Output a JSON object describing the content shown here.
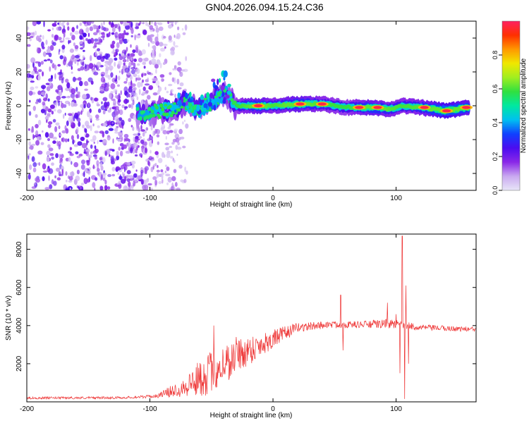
{
  "title": "GN04.2026.094.15.24.C36",
  "chart_data": [
    {
      "type": "heatmap",
      "name": "spectrogram",
      "xlabel": "Height of straight line (km)",
      "ylabel": "Frequency (Hz)",
      "xlim": [
        -200,
        165
      ],
      "ylim": [
        -50,
        50
      ],
      "xticks": [
        -200,
        -100,
        0,
        100
      ],
      "yticks": [
        -40,
        -20,
        0,
        20,
        40
      ],
      "noise_region_x": [
        -200,
        -85
      ],
      "ridge": [
        {
          "x": -110,
          "f": -4,
          "a": 0.35
        },
        {
          "x": -100,
          "f": -4,
          "a": 0.4
        },
        {
          "x": -90,
          "f": -3,
          "a": 0.5
        },
        {
          "x": -80,
          "f": -2,
          "a": 0.45
        },
        {
          "x": -72,
          "f": 2,
          "a": 0.5
        },
        {
          "x": -60,
          "f": -2,
          "a": 0.4
        },
        {
          "x": -50,
          "f": 2,
          "a": 0.45
        },
        {
          "x": -40,
          "f": 8,
          "a": 0.4
        },
        {
          "x": -30,
          "f": 0,
          "a": 0.5
        },
        {
          "x": -20,
          "f": 0,
          "a": 0.6
        },
        {
          "x": -10,
          "f": 0,
          "a": 0.7
        },
        {
          "x": 0,
          "f": 0,
          "a": 0.55
        },
        {
          "x": 20,
          "f": 1,
          "a": 0.7
        },
        {
          "x": 40,
          "f": 1,
          "a": 0.55
        },
        {
          "x": 60,
          "f": -1,
          "a": 0.5
        },
        {
          "x": 80,
          "f": -1,
          "a": 0.7
        },
        {
          "x": 95,
          "f": -2,
          "a": 0.6
        },
        {
          "x": 105,
          "f": 0,
          "a": 0.55
        },
        {
          "x": 120,
          "f": -1,
          "a": 0.6
        },
        {
          "x": 140,
          "f": -3,
          "a": 0.85
        },
        {
          "x": 160,
          "f": -1,
          "a": 0.7
        }
      ],
      "hotspots": [
        {
          "x": -12,
          "f": 0
        },
        {
          "x": 22,
          "f": 1
        },
        {
          "x": 40,
          "f": 1
        },
        {
          "x": 70,
          "f": -1
        },
        {
          "x": 85,
          "f": -1
        },
        {
          "x": 123,
          "f": -1
        },
        {
          "x": 141,
          "f": -3
        },
        {
          "x": 157,
          "f": -1
        }
      ],
      "colorbar": {
        "label": "Normalized spectral amplitude",
        "range": [
          0.0,
          1.0
        ],
        "ticks": [
          {
            "value": 0.0,
            "label": "0.0"
          },
          {
            "value": 0.2,
            "label": "0.2"
          },
          {
            "value": 0.4,
            "label": "0.4"
          },
          {
            "value": 0.6,
            "label": "0.6"
          },
          {
            "value": 0.8,
            "label": "0.8"
          }
        ],
        "colors": [
          "#e8e6f8",
          "#c9a9f0",
          "#8a28e8",
          "#4b0cf0",
          "#1040ff",
          "#00c0f0",
          "#00e8a0",
          "#30e040",
          "#a0ee20",
          "#f0e800",
          "#ff9800",
          "#ff3000",
          "#ff2060"
        ]
      }
    },
    {
      "type": "line",
      "name": "snr",
      "xlabel": "Height of straight line (km)",
      "ylabel": "SNR (10 * v/v)",
      "xlim": [
        -200,
        165
      ],
      "ylim": [
        0,
        8800
      ],
      "xticks": [
        -200,
        -100,
        0,
        100
      ],
      "yticks": [
        2000,
        4000,
        6000,
        8000
      ],
      "color": "#ee3333",
      "envelope": [
        {
          "x": -200,
          "base": 200,
          "spread": 60
        },
        {
          "x": -120,
          "base": 220,
          "spread": 60
        },
        {
          "x": -95,
          "base": 300,
          "spread": 90
        },
        {
          "x": -75,
          "base": 700,
          "spread": 450
        },
        {
          "x": -55,
          "base": 1400,
          "spread": 1100
        },
        {
          "x": -40,
          "base": 2000,
          "spread": 1100
        },
        {
          "x": -20,
          "base": 2700,
          "spread": 800
        },
        {
          "x": 0,
          "base": 3300,
          "spread": 500
        },
        {
          "x": 20,
          "base": 3900,
          "spread": 250
        },
        {
          "x": 45,
          "base": 4050,
          "spread": 180
        },
        {
          "x": 70,
          "base": 4050,
          "spread": 180
        },
        {
          "x": 95,
          "base": 4100,
          "spread": 250
        },
        {
          "x": 120,
          "base": 3900,
          "spread": 150
        },
        {
          "x": 165,
          "base": 3800,
          "spread": 130
        }
      ],
      "spikes": [
        {
          "x": -48,
          "y": 4000
        },
        {
          "x": -30,
          "y": 3400
        },
        {
          "x": 55,
          "y": 5600
        },
        {
          "x": 57,
          "y": 2700
        },
        {
          "x": 93,
          "y": 5200
        },
        {
          "x": 100,
          "y": 4600
        },
        {
          "x": 103,
          "y": 1500
        },
        {
          "x": 105,
          "y": 8700
        },
        {
          "x": 107,
          "y": 150
        },
        {
          "x": 108,
          "y": 6100
        },
        {
          "x": 110,
          "y": 2000
        }
      ]
    }
  ]
}
